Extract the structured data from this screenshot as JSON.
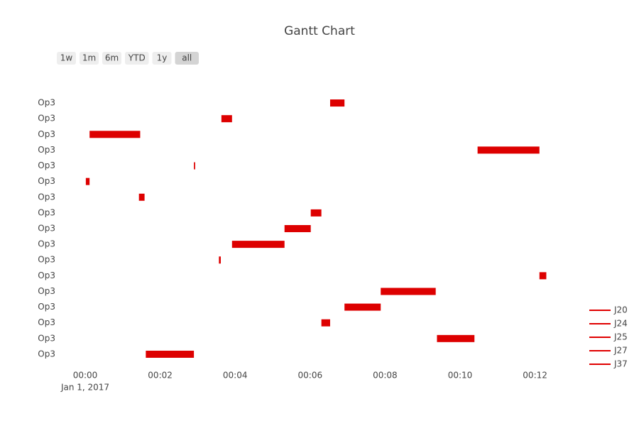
{
  "chart_data": {
    "type": "gantt",
    "title": "Gantt Chart",
    "range_buttons": [
      "1w",
      "1m",
      "6m",
      "YTD",
      "1y",
      "all"
    ],
    "active_button_index": 5,
    "categories": [
      "Op3",
      "Op3",
      "Op3",
      "Op3",
      "Op3",
      "Op3",
      "Op3",
      "Op3",
      "Op3",
      "Op3",
      "Op3",
      "Op3",
      "Op3",
      "Op3",
      "Op3",
      "Op3",
      "Op3"
    ],
    "tasks": [
      {
        "start": "2017-01-01 00:06:32",
        "end": "2017-01-01 00:06:55"
      },
      {
        "start": "2017-01-01 00:03:38",
        "end": "2017-01-01 00:03:55"
      },
      {
        "start": "2017-01-01 00:00:07",
        "end": "2017-01-01 00:01:28"
      },
      {
        "start": "2017-01-01 00:10:28",
        "end": "2017-01-01 00:12:07"
      },
      {
        "start": "2017-01-01 00:02:54",
        "end": "2017-01-01 00:02:56"
      },
      {
        "start": "2017-01-01 00:00:01",
        "end": "2017-01-01 00:00:07"
      },
      {
        "start": "2017-01-01 00:01:26",
        "end": "2017-01-01 00:01:35"
      },
      {
        "start": "2017-01-01 00:06:01",
        "end": "2017-01-01 00:06:18"
      },
      {
        "start": "2017-01-01 00:05:19",
        "end": "2017-01-01 00:06:01"
      },
      {
        "start": "2017-01-01 00:03:55",
        "end": "2017-01-01 00:05:19"
      },
      {
        "start": "2017-01-01 00:03:34",
        "end": "2017-01-01 00:03:37"
      },
      {
        "start": "2017-01-01 00:12:07",
        "end": "2017-01-01 00:12:18"
      },
      {
        "start": "2017-01-01 00:07:53",
        "end": "2017-01-01 00:09:21"
      },
      {
        "start": "2017-01-01 00:06:55",
        "end": "2017-01-01 00:07:53"
      },
      {
        "start": "2017-01-01 00:06:18",
        "end": "2017-01-01 00:06:32"
      },
      {
        "start": "2017-01-01 00:09:23",
        "end": "2017-01-01 00:10:23"
      },
      {
        "start": "2017-01-01 00:01:37",
        "end": "2017-01-01 00:02:54"
      }
    ],
    "color": "#dd0000",
    "legend": [
      {
        "name": "J20",
        "color": "#e00000"
      },
      {
        "name": "J24",
        "color": "#e00000"
      },
      {
        "name": "J25",
        "color": "#e00000"
      },
      {
        "name": "J27",
        "color": "#e00000"
      },
      {
        "name": "J37",
        "color": "#e00000"
      }
    ],
    "xlim": [
      "2017-01-01 00:00:00",
      "2017-01-01 00:12:30"
    ],
    "xticks": [
      {
        "value": "2017-01-01 00:00:00",
        "label": "00:00"
      },
      {
        "value": "2017-01-01 00:02:00",
        "label": "00:02"
      },
      {
        "value": "2017-01-01 00:04:00",
        "label": "00:04"
      },
      {
        "value": "2017-01-01 00:06:00",
        "label": "00:06"
      },
      {
        "value": "2017-01-01 00:08:00",
        "label": "00:08"
      },
      {
        "value": "2017-01-01 00:10:00",
        "label": "00:10"
      },
      {
        "value": "2017-01-01 00:12:00",
        "label": "00:12"
      }
    ],
    "x_date_label": "Jan 1, 2017"
  }
}
